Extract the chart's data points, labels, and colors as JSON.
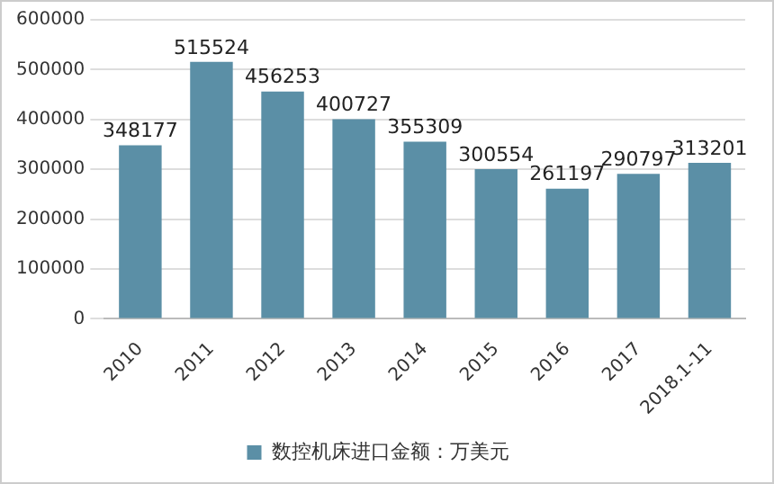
{
  "chart_data": {
    "type": "bar",
    "categories": [
      "2010",
      "2011",
      "2012",
      "2013",
      "2014",
      "2015",
      "2016",
      "2017",
      "2018.1-11"
    ],
    "series": [
      {
        "name": "数控机床进口金额：万美元",
        "color": "#5b8fa6",
        "values": [
          348177,
          515524,
          456253,
          400727,
          355309,
          300554,
          261197,
          290797,
          313201
        ]
      }
    ],
    "ylim": [
      0,
      600000
    ],
    "yticks": [
      0,
      100000,
      200000,
      300000,
      400000,
      500000,
      600000
    ],
    "grid": "y",
    "legend": "bottom",
    "data_labels": true
  }
}
